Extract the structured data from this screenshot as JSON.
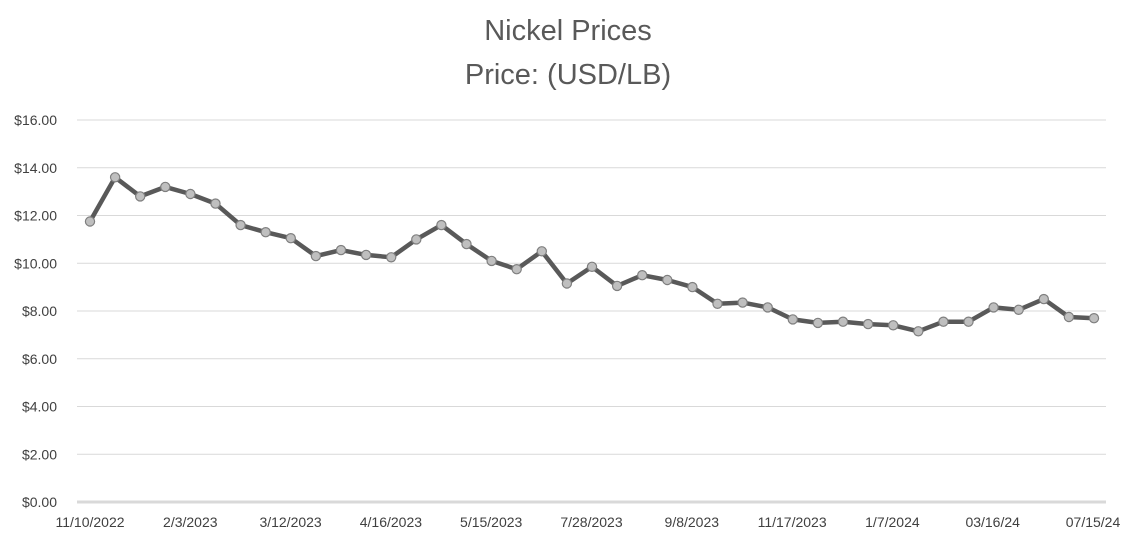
{
  "chart_data": {
    "type": "line",
    "title": "Nickel Prices",
    "subtitle": "Price: (USD/LB)",
    "xlabel": "",
    "ylabel": "",
    "ylim": [
      0,
      16
    ],
    "grid": true,
    "legend": "none",
    "y_tick_labels": [
      "$0.00",
      "$2.00",
      "$4.00",
      "$6.00",
      "$8.00",
      "$10.00",
      "$12.00",
      "$14.00",
      "$16.00"
    ],
    "x_tick_labels": [
      "11/10/2022",
      "2/3/2023",
      "3/12/2023",
      "4/16/2023",
      "5/15/2023",
      "7/28/2023",
      "9/8/2023",
      "11/17/2023",
      "1/7/2024",
      "03/16/24",
      "07/15/24"
    ],
    "series": [
      {
        "values": [
          11.75,
          13.6,
          12.8,
          13.2,
          12.9,
          12.5,
          11.6,
          11.3,
          11.05,
          10.3,
          10.55,
          10.35,
          10.25,
          11.0,
          11.6,
          10.8,
          10.1,
          9.75,
          10.5,
          9.15,
          9.85,
          9.05,
          9.5,
          9.3,
          9.0,
          8.3,
          8.35,
          8.15,
          7.65,
          7.5,
          7.55,
          7.45,
          7.4,
          7.15,
          7.55,
          7.55,
          8.15,
          8.05,
          8.5,
          7.75,
          7.7
        ]
      }
    ],
    "colors": {
      "line": "#595959",
      "marker_fill": "#bfbfbf",
      "marker_stroke": "#7f7f7f",
      "grid": "#d9d9d9",
      "title": "#595959",
      "tick_text": "#404040"
    }
  }
}
